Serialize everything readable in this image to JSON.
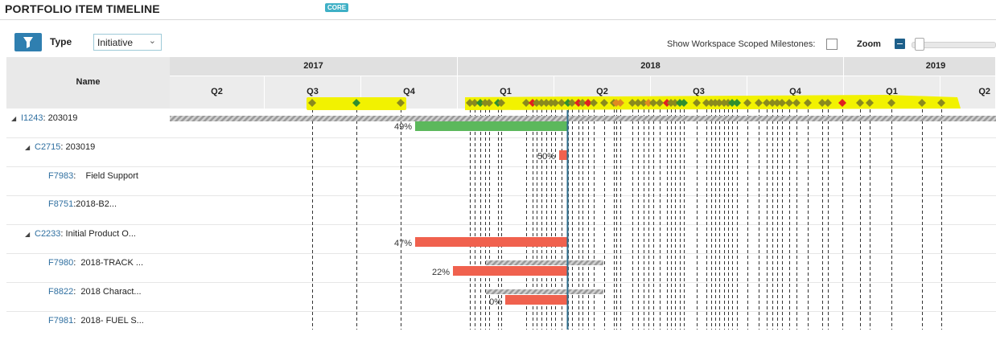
{
  "header": {
    "title": "PORTFOLIO ITEM TIMELINE",
    "badge": "CORE"
  },
  "toolbar": {
    "type_label": "Type",
    "type_value": "Initiative",
    "scoped_label": "Show Workspace Scoped Milestones:",
    "scoped_checked": false,
    "zoom_label": "Zoom",
    "zoom_level": 0.05
  },
  "grid": {
    "name_header": "Name",
    "years": [
      "2017",
      "2018",
      "2019"
    ],
    "quarters": [
      "Q2",
      "Q3",
      "Q4",
      "Q1",
      "Q2",
      "Q3",
      "Q4",
      "Q1",
      "Q2"
    ]
  },
  "rows": [
    {
      "id": "I1243",
      "name": "203019",
      "expanded": true,
      "percent": "49%"
    },
    {
      "id": "C2715",
      "name": "203019",
      "expanded": true,
      "percent": "50%"
    },
    {
      "id": "F7983",
      "name": "Field Support"
    },
    {
      "id": "F8751",
      "name": "2018-B2..."
    },
    {
      "id": "C2233",
      "name": "Initial Product O...",
      "expanded": true,
      "percent": "47%"
    },
    {
      "id": "F7980",
      "name": "2018-TRACK ...",
      "percent": "22%"
    },
    {
      "id": "F8822",
      "name": "2018 Charact...",
      "percent": "0%"
    },
    {
      "id": "F7981",
      "name": "2018- FUEL S..."
    }
  ],
  "colors": {
    "brand": "#2f7fb0",
    "on_track": "#5cb85c",
    "late": "#f0614e",
    "milestone_olive": "#8a8a1e",
    "milestone_green": "#2f8f2f",
    "milestone_red": "#e02020",
    "milestone_orange": "#e08a20",
    "highlight": "#f2f200",
    "today_line": "#2f6f8f"
  }
}
